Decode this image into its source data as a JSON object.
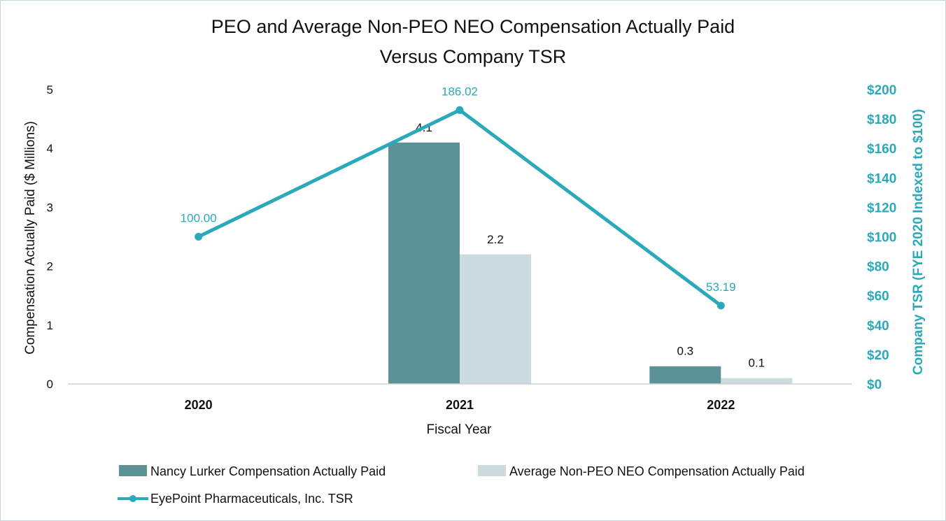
{
  "chart_data": {
    "type": "bar",
    "title": "PEO and Average Non-PEO NEO Compensation Actually Paid",
    "title_line2": "Versus Company TSR",
    "categories": [
      "2020",
      "2021",
      "2022"
    ],
    "series": [
      {
        "name": "Nancy Lurker Compensation Actually Paid",
        "type": "bar",
        "axis": "left",
        "color": "#5a9298",
        "values": [
          null,
          4.1,
          0.3
        ],
        "labels": [
          "",
          "4.1",
          "0.3"
        ]
      },
      {
        "name": "Average Non-PEO NEO Compensation Actually Paid",
        "type": "bar",
        "axis": "left",
        "color": "#ccdbe0",
        "values": [
          null,
          2.2,
          0.1
        ],
        "labels": [
          "",
          "2.2",
          "0.1"
        ]
      },
      {
        "name": "EyePoint Pharmaceuticals, Inc. TSR",
        "type": "line",
        "axis": "right",
        "color": "#29a9b9",
        "values": [
          100.0,
          186.02,
          53.19
        ],
        "labels": [
          "100.00",
          "186.02",
          "53.19"
        ]
      }
    ],
    "xlabel": "Fiscal Year",
    "ylabel": "Compensation Actually Paid ($ Millions)",
    "y2label": "Company TSR (FYE 2020 Indexed to $100)",
    "ylim": [
      0,
      5
    ],
    "y2lim": [
      0,
      200
    ],
    "yticks": [
      "0",
      "1",
      "2",
      "3",
      "4",
      "5"
    ],
    "y2ticks": [
      "$0",
      "$20",
      "$40",
      "$60",
      "$80",
      "$100",
      "$120",
      "$140",
      "$160",
      "$180",
      "$200"
    ],
    "grid": false,
    "legend_position": "bottom"
  }
}
